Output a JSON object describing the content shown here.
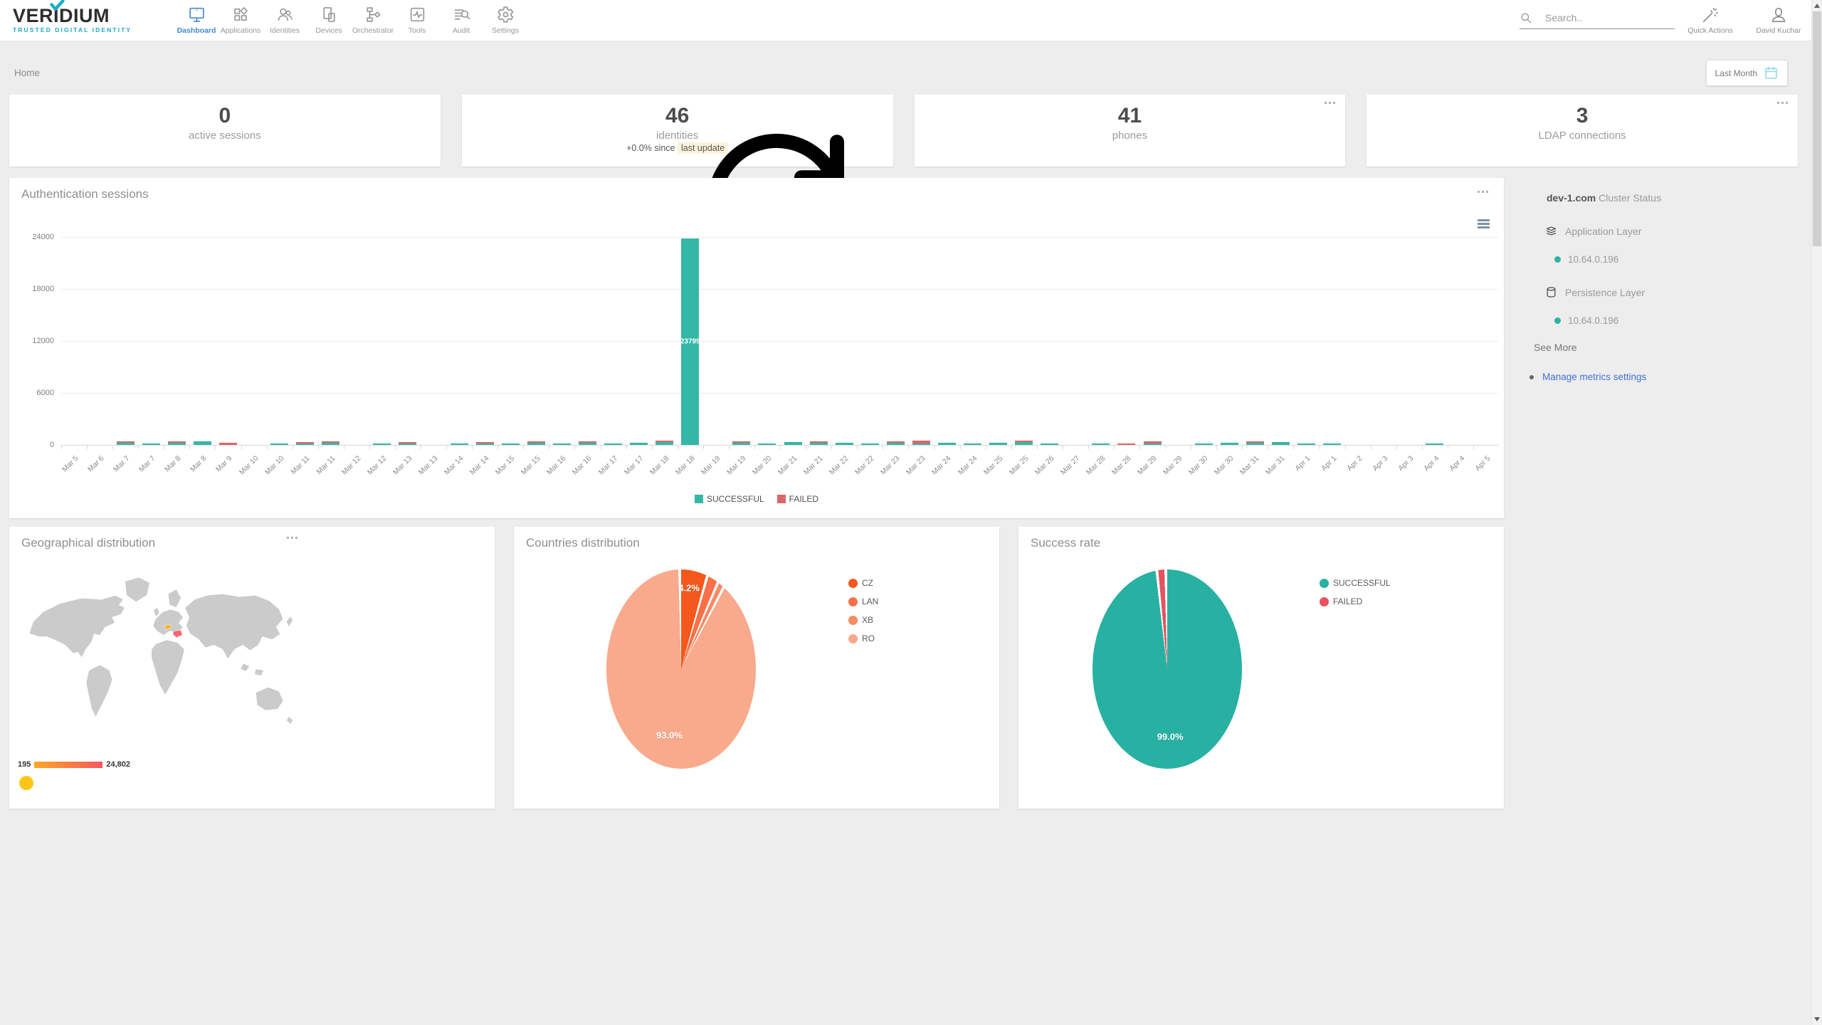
{
  "brand": {
    "name": "VERIDIUM",
    "tagline": "TRUSTED DIGITAL IDENTITY"
  },
  "nav": {
    "items": [
      {
        "id": "dashboard",
        "label": "Dashboard",
        "icon": "dashboard-icon",
        "active": true
      },
      {
        "id": "applications",
        "label": "Applications",
        "icon": "applications-icon",
        "active": false
      },
      {
        "id": "identities",
        "label": "Identities",
        "icon": "identities-icon",
        "active": false
      },
      {
        "id": "devices",
        "label": "Devices",
        "icon": "devices-icon",
        "active": false
      },
      {
        "id": "orchestrator",
        "label": "Orchestrator",
        "icon": "orchestrator-icon",
        "active": false
      },
      {
        "id": "tools",
        "label": "Tools",
        "icon": "tools-icon",
        "active": false
      },
      {
        "id": "audit",
        "label": "Audit",
        "icon": "audit-icon",
        "active": false
      },
      {
        "id": "settings",
        "label": "Settings",
        "icon": "settings-icon",
        "active": false
      }
    ]
  },
  "topbar": {
    "search_placeholder": "Search..",
    "quick_actions": "Quick Actions",
    "user": "David Kuchar"
  },
  "breadcrumb": {
    "label": "Home"
  },
  "period_button": {
    "label": "Last Month"
  },
  "stat_cards": [
    {
      "value": "0",
      "label": "active sessions"
    },
    {
      "value": "46",
      "label": "identities",
      "delta_text": "+0.0% since",
      "delta_highlight": "last update"
    },
    {
      "value": "41",
      "label": "phones"
    },
    {
      "value": "3",
      "label": "LDAP connections"
    }
  ],
  "panels": {
    "auth_title": "Authentication sessions",
    "geo_title": "Geographical distribution",
    "countries_title": "Countries distribution",
    "success_title": "Success rate"
  },
  "cluster": {
    "host": "dev-1.com",
    "heading": "Cluster Status",
    "layers": [
      {
        "label": "Application Layer",
        "icon": "layers-stack-icon",
        "nodes": [
          "10.64.0.196"
        ]
      },
      {
        "label": "Persistence Layer",
        "icon": "database-icon",
        "nodes": [
          "10.64.0.196"
        ]
      }
    ],
    "see_more": "See More",
    "manage_link": "Manage metrics settings"
  },
  "geo_scale": {
    "min": "195",
    "max": "24,802"
  },
  "map": {
    "highlights": [
      {
        "name": "CZ",
        "color": "#f1b62c"
      },
      {
        "name": "RO",
        "color": "#f8666f"
      }
    ]
  },
  "chart_data": [
    {
      "type": "bar",
      "title": "Authentication sessions",
      "stacked": true,
      "ylim": [
        0,
        24000
      ],
      "yticks": [
        0,
        6000,
        12000,
        18000,
        24000
      ],
      "grid": true,
      "legend_position": "bottom",
      "categories": [
        "Mar 5",
        "Mar 6",
        "Mar 7",
        "Mar 7",
        "Mar 8",
        "Mar 8",
        "Mar 9",
        "Mar 10",
        "Mar 10",
        "Mar 11",
        "Mar 11",
        "Mar 12",
        "Mar 12",
        "Mar 13",
        "Mar 13",
        "Mar 14",
        "Mar 14",
        "Mar 15",
        "Mar 15",
        "Mar 16",
        "Mar 16",
        "Mar 17",
        "Mar 17",
        "Mar 18",
        "Mar 18",
        "Mar 19",
        "Mar 19",
        "Mar 20",
        "Mar 21",
        "Mar 21",
        "Mar 22",
        "Mar 22",
        "Mar 23",
        "Mar 23",
        "Mar 24",
        "Mar 24",
        "Mar 25",
        "Mar 25",
        "Mar 26",
        "Mar 27",
        "Mar 28",
        "Mar 28",
        "Mar 29",
        "Mar 29",
        "Mar 30",
        "Mar 30",
        "Mar 31",
        "Mar 31",
        "Apr 1",
        "Apr 1",
        "Apr 2",
        "Apr 3",
        "Apr 3",
        "Apr 4",
        "Apr 4",
        "Apr 5"
      ],
      "series": [
        {
          "name": "SUCCESSFUL",
          "color": "#35b7a7",
          "values": [
            0,
            0,
            220,
            180,
            260,
            420,
            0,
            0,
            160,
            60,
            240,
            0,
            180,
            40,
            0,
            150,
            120,
            200,
            260,
            200,
            280,
            180,
            240,
            320,
            23799,
            0,
            260,
            200,
            320,
            280,
            240,
            180,
            260,
            60,
            220,
            200,
            240,
            320,
            160,
            0,
            140,
            0,
            180,
            0,
            160,
            280,
            240,
            340,
            200,
            160,
            0,
            0,
            0,
            140,
            0,
            0
          ]
        },
        {
          "name": "FAILED",
          "color": "#dd6666",
          "values": [
            0,
            0,
            40,
            0,
            60,
            0,
            280,
            0,
            0,
            160,
            60,
            0,
            0,
            160,
            0,
            0,
            30,
            0,
            40,
            0,
            50,
            0,
            0,
            60,
            0,
            0,
            40,
            0,
            0,
            60,
            0,
            0,
            80,
            300,
            0,
            0,
            0,
            80,
            0,
            0,
            0,
            160,
            240,
            0,
            0,
            0,
            100,
            0,
            0,
            0,
            0,
            0,
            0,
            0,
            0,
            0
          ]
        }
      ],
      "bar_label": {
        "index": 24,
        "text": "23799"
      }
    },
    {
      "type": "pie",
      "title": "Countries distribution",
      "labels": [
        "CZ",
        "LAN",
        "XB",
        "RO"
      ],
      "values": [
        4.2,
        1.6,
        0.8,
        93.0
      ],
      "colors": [
        "#f4581c",
        "#f97049",
        "#fa8a63",
        "#f9a98c"
      ],
      "legend_position": "right"
    },
    {
      "type": "pie",
      "title": "Success rate",
      "labels": [
        "SUCCESSFUL",
        "FAILED"
      ],
      "values": [
        99.0,
        1.0
      ],
      "colors": [
        "#28b0a2",
        "#e4535f"
      ],
      "legend_position": "right"
    }
  ],
  "colors": {
    "accent_blue": "#4489cd",
    "link_blue": "#4170d8",
    "teal": "#2bb3a3",
    "failed_red": "#e4535f",
    "highlight_bg": "#fbf3da",
    "calendar_blue": "#8ed2ea",
    "scale_start": "#ffa724",
    "scale_end": "#f8565f"
  }
}
